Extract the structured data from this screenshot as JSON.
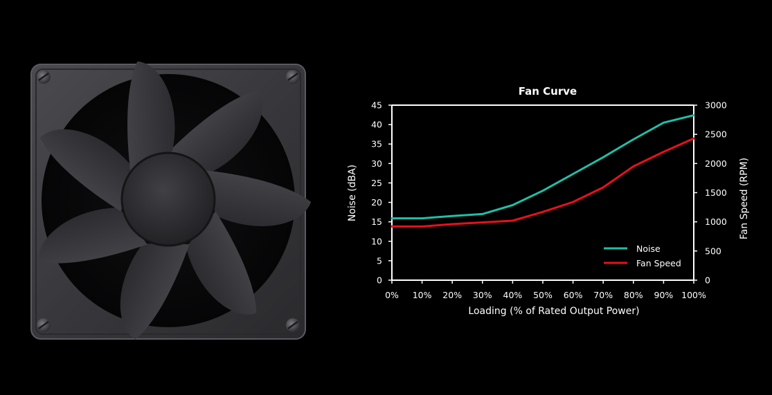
{
  "chart_data": {
    "type": "line",
    "title": "Fan Curve",
    "xlabel": "Loading (% of Rated Output Power)",
    "ylabel": "Noise (dBA)",
    "y2label": "Fan Speed (RPM)",
    "categories": [
      "0%",
      "10%",
      "20%",
      "30%",
      "40%",
      "50%",
      "60%",
      "70%",
      "80%",
      "90%",
      "100%"
    ],
    "x": [
      0,
      10,
      20,
      30,
      40,
      50,
      60,
      70,
      80,
      90,
      100
    ],
    "ylim": [
      0,
      45
    ],
    "y_ticks": [
      0,
      5,
      10,
      15,
      20,
      25,
      30,
      35,
      40,
      45
    ],
    "y2lim": [
      0,
      3000
    ],
    "y2_ticks": [
      0,
      500,
      1000,
      1500,
      2000,
      2500,
      3000
    ],
    "grid": false,
    "legend_position": "bottom-right",
    "series": [
      {
        "name": "Noise",
        "axis": "left",
        "color": "#1fbfa8",
        "values": [
          15.9,
          15.9,
          16.5,
          17.0,
          19.3,
          23.0,
          27.3,
          31.6,
          36.2,
          40.5,
          42.4
        ]
      },
      {
        "name": "Fan Speed",
        "axis": "right",
        "color": "#e8101c",
        "values": [
          920,
          920,
          960,
          990,
          1020,
          1170,
          1340,
          1590,
          1950,
          2200,
          2430
        ]
      }
    ]
  },
  "colors": {
    "background": "#000000",
    "axis": "#ffffff",
    "fan_frame": "#3c3c40",
    "fan_blade": "#2a2a2e"
  },
  "illustration": {
    "icon": "cooling-fan-icon"
  }
}
